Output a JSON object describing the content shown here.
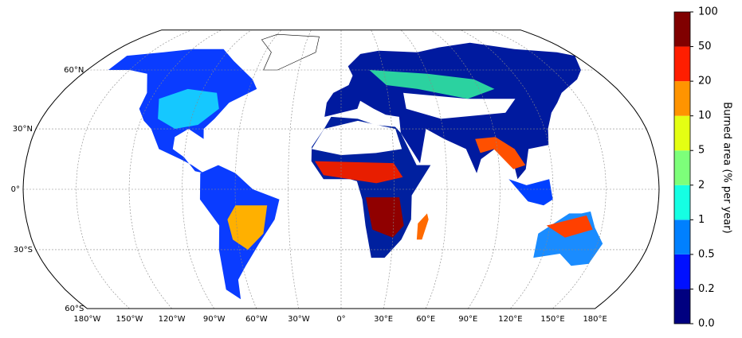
{
  "map": {
    "lat_ticks": [
      {
        "value": 60,
        "label": "60°N"
      },
      {
        "value": 30,
        "label": "30°N"
      },
      {
        "value": 0,
        "label": "0°"
      },
      {
        "value": -30,
        "label": "30°S"
      },
      {
        "value": -60,
        "label": "60°S"
      }
    ],
    "lon_ticks": [
      {
        "value": -180,
        "label": "180°W"
      },
      {
        "value": -150,
        "label": "150°W"
      },
      {
        "value": -120,
        "label": "120°W"
      },
      {
        "value": -90,
        "label": "90°W"
      },
      {
        "value": -60,
        "label": "60°W"
      },
      {
        "value": -30,
        "label": "30°W"
      },
      {
        "value": 0,
        "label": "0°"
      },
      {
        "value": 30,
        "label": "30°E"
      },
      {
        "value": 60,
        "label": "60°E"
      },
      {
        "value": 90,
        "label": "90°E"
      },
      {
        "value": 120,
        "label": "120°E"
      },
      {
        "value": 150,
        "label": "150°E"
      },
      {
        "value": 180,
        "label": "180°E"
      }
    ]
  },
  "colorbar": {
    "label": "Burned area (% per year)",
    "ticks": [
      {
        "value": 0,
        "label": "0.0"
      },
      0.2,
      0.5,
      1,
      2,
      5,
      10,
      20,
      50,
      100
    ],
    "colors": [
      "#000080",
      "#0010ff",
      "#0080ff",
      "#15ffe3",
      "#7dff7a",
      "#e4ff13",
      "#ff9400",
      "#ff1e00",
      "#800000"
    ]
  }
}
